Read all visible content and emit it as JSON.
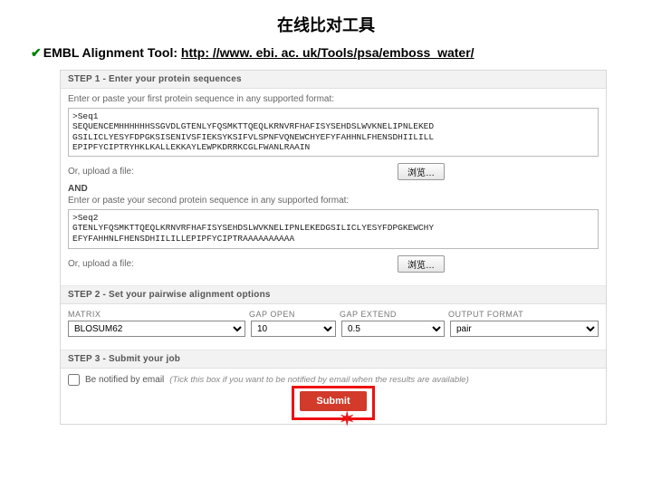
{
  "page": {
    "title": "在线比对工具",
    "tool_label": "EMBL Alignment Tool:",
    "tool_url": "http: //www. ebi. ac. uk/Tools/psa/emboss_water/"
  },
  "step1": {
    "header": "STEP 1 - Enter your protein sequences",
    "prompt1": "Enter or paste your first protein sequence in any supported format:",
    "seq1": ">Seq1\nSEQUENCEMHHHHHHSSGVDLGTENLYFQSMKTTQEQLKRNVRFHAFISYSEHDSLWVKNELIPNLEKED\nGSILICLYESYFDPGKSISENIVSFIEKSYKSIFVLSPNFVQNEWCHYEFYFAHHNLFHENSDHIILILL\nEPIPFYCIPTRYHKLKALLEKKAYLEWPKDRRKCGLFWANLRAAIN",
    "upload1_label": "Or, upload a file:",
    "browse_label": "浏览…",
    "and": "AND",
    "prompt2": "Enter or paste your second protein sequence in any supported format:",
    "seq2": ">Seq2\nGTENLYFQSMKTTQEQLKRNVRFHAFISYSEHDSLWVKNELIPNLEKEDGSILICLYESYFDPGKEWCHY\nEFYFAHHNLFHENSDHIILILLEPIPFYCIPTRAAAAAAAAAA",
    "upload2_label": "Or, upload a file:"
  },
  "step2": {
    "header": "STEP 2 - Set your pairwise alignment options",
    "col_matrix": "MATRIX",
    "col_gapopen": "GAP OPEN",
    "col_gapext": "GAP EXTEND",
    "col_outfmt": "OUTPUT FORMAT",
    "matrix": "BLOSUM62",
    "gap_open": "10",
    "gap_extend": "0.5",
    "out_fmt": "pair"
  },
  "step3": {
    "header": "STEP 3 - Submit your job",
    "notify_label": "Be notified by email",
    "notify_hint": "(Tick this box if you want to be notified by email when the results are available)",
    "submit_label": "Submit"
  },
  "colors": {
    "accent_red": "#d23a2a",
    "highlight_border": "#e11",
    "check_green": "#008000"
  }
}
